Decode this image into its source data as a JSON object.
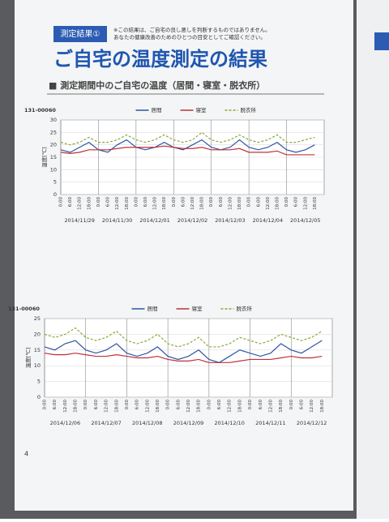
{
  "header": {
    "badge": "測定結果①",
    "note": [
      "※この結果は、ご自宅の良し悪しを判断するものではありません。",
      "あなたの健康改善のためのひとつの目安としてご確認ください。"
    ],
    "title": "ご自宅の温度測定の結果",
    "section": "■ 測定期間中のご自宅の温度（居間・寝室・脱衣所）",
    "page": "4"
  },
  "chart_data": [
    {
      "type": "line",
      "title": "131-00060",
      "y_label": "温度[℃]",
      "categories": [
        "0:00",
        "6:00",
        "12:00",
        "18:00",
        "0:00",
        "6:00",
        "12:00",
        "18:00",
        "0:00",
        "6:00",
        "12:00",
        "18:00",
        "0:00",
        "6:00",
        "12:00",
        "18:00",
        "0:00",
        "6:00",
        "12:00",
        "18:00",
        "0:00",
        "6:00",
        "12:00",
        "18:00",
        "0:00",
        "6:00",
        "12:00",
        "18:00"
      ],
      "dates": [
        "2014/11/29",
        "2014/11/30",
        "2014/12/01",
        "2014/12/02",
        "2014/12/03",
        "2014/12/04",
        "2014/12/05"
      ],
      "ylim": [
        0,
        30
      ],
      "yticks": [
        0,
        5,
        10,
        15,
        20,
        25,
        30
      ],
      "grid": true,
      "series": [
        {
          "name": "居間",
          "color": "#2f55a4",
          "values": [
            18,
            17,
            19,
            21,
            18,
            17,
            20,
            22,
            19,
            18,
            19,
            21,
            19,
            18,
            20,
            22,
            19,
            18,
            19,
            22,
            19,
            18,
            19,
            21,
            18,
            17,
            18,
            20
          ]
        },
        {
          "name": "寝室",
          "color": "#c0303a",
          "values": [
            17,
            16.5,
            17,
            18,
            18,
            18,
            18.5,
            19,
            19,
            19,
            19,
            19.5,
            19,
            18.5,
            18.5,
            19,
            18,
            18,
            18,
            18.5,
            17,
            17,
            17,
            17.5,
            16,
            16,
            16,
            16
          ]
        },
        {
          "name": "脱衣所",
          "color": "#8aa83a",
          "dashed": true,
          "values": [
            21,
            20,
            21,
            23,
            21,
            21,
            22,
            24,
            22,
            21,
            22,
            24,
            22,
            21,
            22,
            25,
            22,
            21,
            22,
            24,
            22,
            21,
            22,
            24,
            21,
            21,
            22,
            23
          ]
        }
      ]
    },
    {
      "type": "line",
      "title": "131-00060",
      "y_label": "温度[℃]",
      "categories": [
        "0:00",
        "6:00",
        "12:00",
        "18:00",
        "0:00",
        "6:00",
        "12:00",
        "18:00",
        "0:00",
        "6:00",
        "12:00",
        "18:00",
        "0:00",
        "6:00",
        "12:00",
        "18:00",
        "0:00",
        "6:00",
        "12:00",
        "18:00",
        "0:00",
        "6:00",
        "12:00",
        "18:00",
        "0:00",
        "6:00",
        "12:00",
        "18:00"
      ],
      "dates": [
        "2014/12/06",
        "2014/12/07",
        "2014/12/08",
        "2014/12/09",
        "2014/12/10",
        "2014/12/11",
        "2014/12/12"
      ],
      "ylim": [
        0,
        25
      ],
      "yticks": [
        0,
        5,
        10,
        15,
        20,
        25
      ],
      "grid": true,
      "series": [
        {
          "name": "居間",
          "color": "#2f55a4",
          "values": [
            16,
            15,
            17,
            18,
            15,
            14,
            15,
            17,
            14,
            13,
            14,
            16,
            13,
            12,
            13,
            15,
            12,
            11,
            13,
            15,
            14,
            13,
            14,
            17,
            15,
            14,
            16,
            18
          ]
        },
        {
          "name": "寝室",
          "color": "#c0303a",
          "values": [
            14,
            13.5,
            13.5,
            14,
            13.5,
            13,
            13,
            13.5,
            13,
            12.5,
            12.5,
            13,
            12,
            11.5,
            11.5,
            12,
            11,
            11,
            11,
            11.5,
            12,
            12,
            12,
            12.5,
            13,
            12.5,
            12.5,
            13
          ]
        },
        {
          "name": "脱衣所",
          "color": "#8aa83a",
          "dashed": true,
          "values": [
            20,
            19,
            20,
            22,
            19,
            18,
            19,
            21,
            18,
            17,
            18,
            20,
            17,
            16,
            17,
            19,
            16,
            16,
            17,
            19,
            18,
            17,
            18,
            20,
            19,
            18,
            19,
            21
          ]
        }
      ]
    }
  ]
}
